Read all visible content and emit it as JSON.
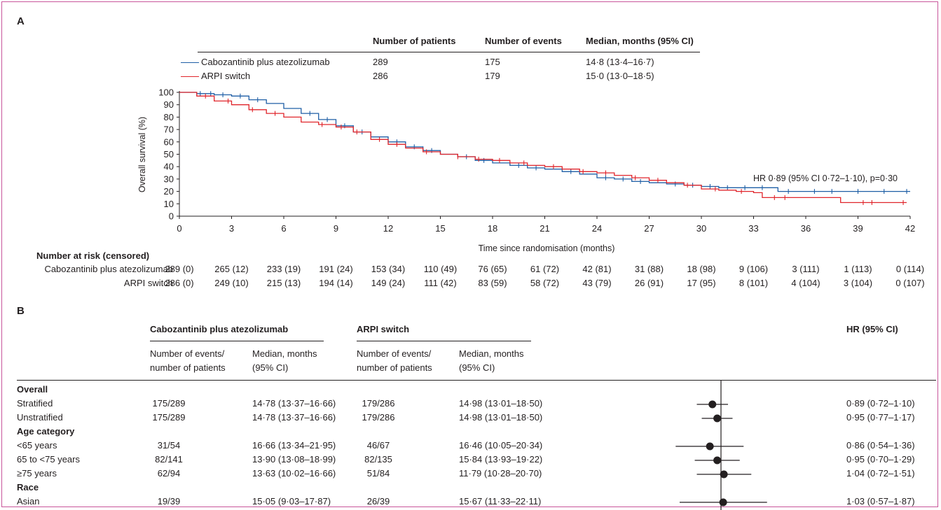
{
  "panel_a": {
    "label": "A",
    "legend_headers": {
      "patients": "Number of patients",
      "events": "Number of events",
      "median": "Median, months (95% CI)"
    },
    "legend_rows": [
      {
        "name": "Cabozantinib plus atezolizumab",
        "patients": "289",
        "events": "175",
        "median": "14·8 (13·4–16·7)",
        "color": "#1f5fa6"
      },
      {
        "name": "ARPI switch",
        "patients": "286",
        "events": "179",
        "median": "15·0 (13·0–18·5)",
        "color": "#e0252b"
      }
    ],
    "at_risk_title": "Number at risk (censored)",
    "at_risk": [
      {
        "name": "Cabozantinib plus atezolizumab",
        "values": [
          "289 (0)",
          "265 (12)",
          "233 (19)",
          "191 (24)",
          "153 (34)",
          "110 (49)",
          "76 (65)",
          "61 (72)",
          "42 (81)",
          "31 (88)",
          "18 (98)",
          "9 (106)",
          "3 (111)",
          "1 (113)",
          "0 (114)"
        ]
      },
      {
        "name": "ARPI switch",
        "values": [
          "286 (0)",
          "249 (10)",
          "215 (13)",
          "194 (14)",
          "149 (24)",
          "111 (42)",
          "83 (59)",
          "58 (72)",
          "43 (79)",
          "26 (91)",
          "17 (95)",
          "8 (101)",
          "4 (104)",
          "3 (104)",
          "0 (107)"
        ]
      }
    ]
  },
  "chart_data": {
    "type": "line",
    "title": "",
    "xlabel": "Time since randomisation (months)",
    "ylabel": "Overall survival (%)",
    "xlim": [
      0,
      42
    ],
    "ylim": [
      0,
      100
    ],
    "x_ticks": [
      0,
      3,
      6,
      9,
      12,
      15,
      18,
      21,
      24,
      27,
      30,
      33,
      36,
      39,
      42
    ],
    "y_ticks": [
      0,
      10,
      20,
      30,
      40,
      50,
      60,
      70,
      80,
      90,
      100
    ],
    "annotation": "HR 0·89 (95% CI 0·72–1·10), p=0·30",
    "series": [
      {
        "name": "Cabozantinib plus atezolizumab",
        "color": "#1f5fa6",
        "x": [
          0,
          1,
          2,
          3,
          4,
          5,
          6,
          7,
          8,
          9,
          10,
          11,
          12,
          13,
          14,
          15,
          16,
          17,
          18,
          19,
          20,
          21,
          22,
          23,
          24,
          25,
          26,
          27,
          28,
          29,
          30,
          31,
          32,
          33,
          34,
          34.4,
          35,
          36,
          38,
          40,
          42
        ],
        "y": [
          100,
          99,
          98,
          97,
          94,
          91,
          87,
          83,
          78,
          73,
          68,
          64,
          60,
          56,
          53,
          50,
          48,
          45,
          43,
          41,
          39,
          38,
          36,
          34,
          31,
          30,
          28,
          27,
          26,
          25,
          24,
          23,
          23,
          23,
          23,
          20,
          20,
          20,
          20,
          20,
          20
        ],
        "censored_x": [
          1.2,
          1.8,
          2.5,
          3.5,
          4.5,
          7.5,
          8.5,
          9.5,
          10.5,
          12.5,
          13.5,
          14.5,
          16.5,
          17.5,
          19.5,
          20.5,
          22.5,
          24.5,
          25.5,
          26.5,
          28.5,
          29.5,
          30.5,
          31.5,
          32.5,
          33.5,
          35,
          36.5,
          37.5,
          39,
          40.5,
          41.8
        ]
      },
      {
        "name": "ARPI switch",
        "color": "#e0252b",
        "x": [
          0,
          1,
          2,
          3,
          4,
          5,
          6,
          7,
          8,
          9,
          10,
          11,
          12,
          13,
          14,
          15,
          16,
          17,
          18,
          19,
          20,
          21,
          22,
          23,
          24,
          25,
          26,
          27,
          28,
          29,
          30,
          31,
          32,
          33,
          33.5,
          34,
          36,
          38,
          39,
          41,
          41.8
        ],
        "y": [
          100,
          97,
          93,
          90,
          86,
          83,
          80,
          76,
          74,
          72,
          68,
          62,
          58,
          55,
          52,
          50,
          48,
          46,
          45,
          43,
          41,
          40,
          38,
          36,
          35,
          33,
          31,
          29,
          27,
          25,
          22,
          21,
          20,
          19,
          15,
          15,
          15,
          11,
          11,
          11,
          11
        ],
        "censored_x": [
          1.5,
          2.8,
          4.2,
          5.5,
          8.2,
          9.3,
          10.2,
          11.5,
          12.5,
          14.2,
          16,
          17.2,
          18.4,
          19.8,
          21.5,
          23.2,
          24.5,
          26.2,
          27.5,
          29.2,
          30.8,
          32.3,
          34.2,
          34.8,
          39.3,
          39.8,
          41.6
        ]
      }
    ]
  },
  "panel_b": {
    "label": "B",
    "group1": "Cabozantinib plus atezolizumab",
    "group2": "ARPI switch",
    "hr_header": "HR (95% CI)",
    "sub_events_a": "Number of events/",
    "sub_events_b": "number of patients",
    "sub_median_a": "Median, months",
    "sub_median_b": "(95% CI)",
    "rows": [
      {
        "kind": "category",
        "label": "Overall"
      },
      {
        "kind": "row",
        "label": "Stratified",
        "g1_events": "175/289",
        "g1_median": "14·78 (13·37–16·66)",
        "g2_events": "179/286",
        "g2_median": "14·98 (13·01–18·50)",
        "hr_text": "0·89 (0·72–1·10)",
        "hr": 0.89,
        "lo": 0.72,
        "hi": 1.1
      },
      {
        "kind": "row",
        "label": "Unstratified",
        "g1_events": "175/289",
        "g1_median": "14·78 (13·37–16·66)",
        "g2_events": "179/286",
        "g2_median": "14·98 (13·01–18·50)",
        "hr_text": "0·95 (0·77–1·17)",
        "hr": 0.95,
        "lo": 0.77,
        "hi": 1.17
      },
      {
        "kind": "category",
        "label": "Age category"
      },
      {
        "kind": "row",
        "label": "<65 years",
        "g1_events": "31/54",
        "g1_median": "16·66 (13·34–21·95)",
        "g2_events": "46/67",
        "g2_median": "16·46 (10·05–20·34)",
        "hr_text": "0·86 (0·54–1·36)",
        "hr": 0.86,
        "lo": 0.54,
        "hi": 1.36
      },
      {
        "kind": "row",
        "label": "65 to <75 years",
        "g1_events": "82/141",
        "g1_median": "13·90 (13·08–18·99)",
        "g2_events": "82/135",
        "g2_median": "15·84 (13·93–19·22)",
        "hr_text": "0·95 (0·70–1·29)",
        "hr": 0.95,
        "lo": 0.7,
        "hi": 1.29
      },
      {
        "kind": "row",
        "label": "≥75 years",
        "g1_events": "62/94",
        "g1_median": "13·63 (10·02–16·66)",
        "g2_events": "51/84",
        "g2_median": "11·79 (10·28–20·70)",
        "hr_text": "1·04 (0·72–1·51)",
        "hr": 1.04,
        "lo": 0.72,
        "hi": 1.51
      },
      {
        "kind": "category",
        "label": "Race"
      },
      {
        "kind": "row",
        "label": "Asian",
        "g1_events": "19/39",
        "g1_median": "15·05 (9·03–17·87)",
        "g2_events": "26/39",
        "g2_median": "15·67 (11·33–22·11)",
        "hr_text": "1·03 (0·57–1·87)",
        "hr": 1.03,
        "lo": 0.57,
        "hi": 1.87
      }
    ]
  }
}
